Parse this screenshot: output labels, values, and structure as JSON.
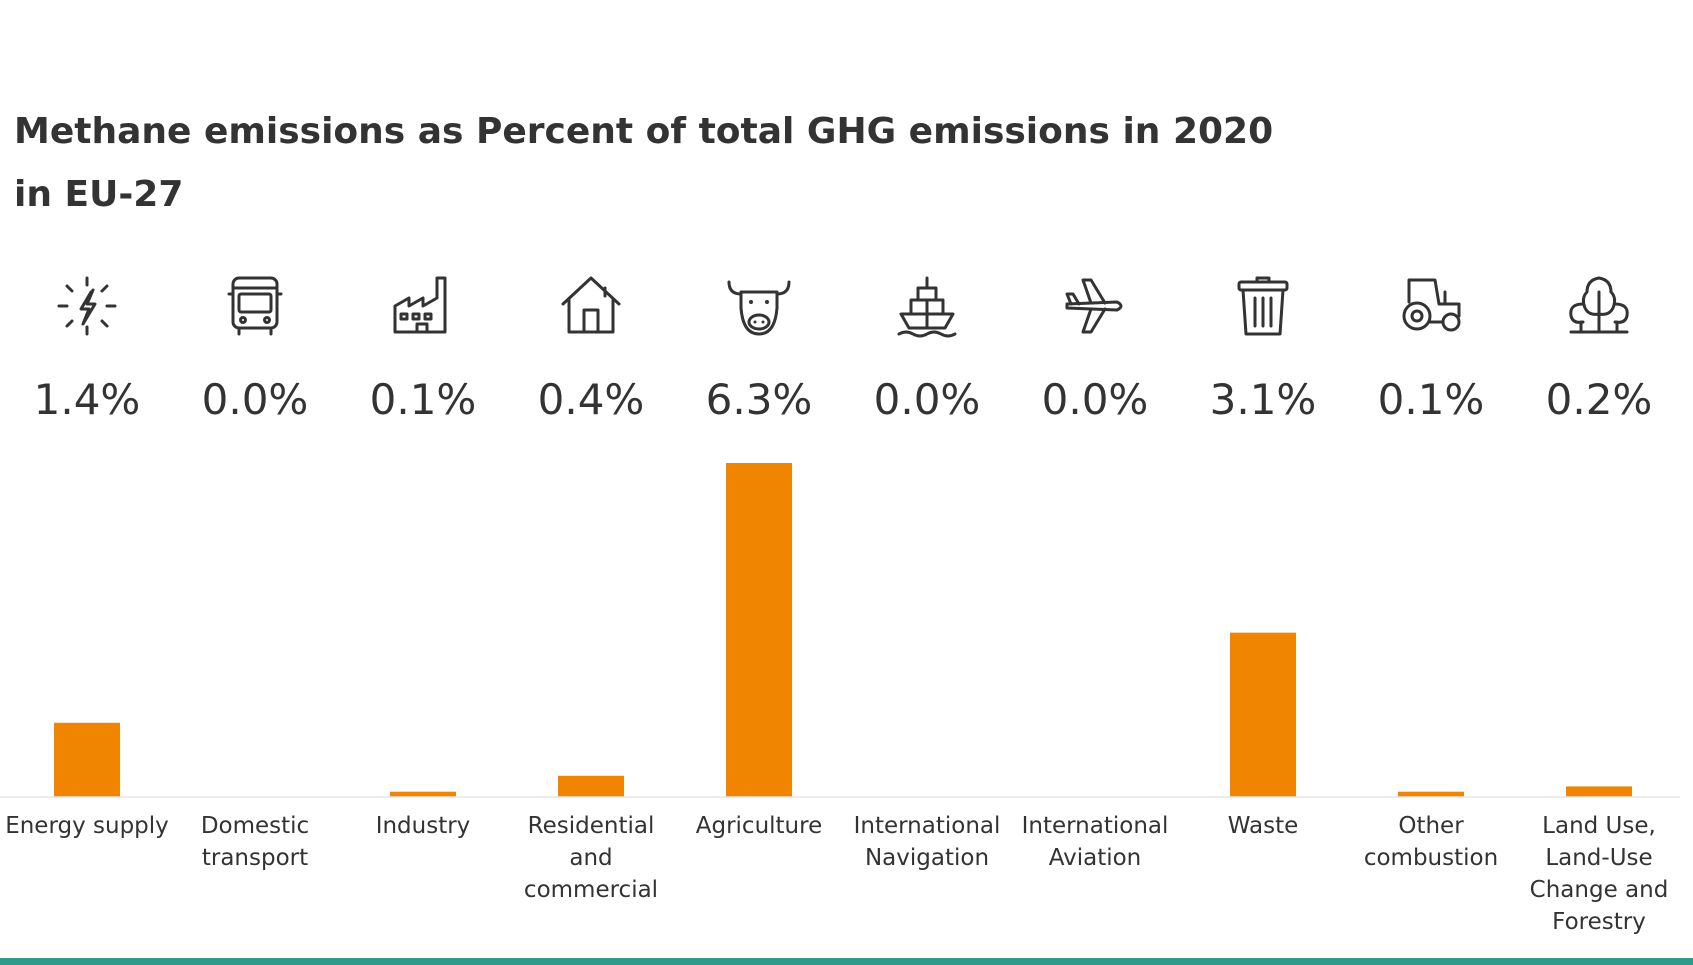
{
  "title_line1": "Methane emissions as Percent of total GHG emissions in 2020",
  "title_line2": "in EU-27",
  "chart_data": {
    "type": "bar",
    "title": "Methane emissions as Percent of total GHG emissions in 2020 in EU-27",
    "categories": [
      [
        "Energy supply"
      ],
      [
        "Domestic",
        "transport"
      ],
      [
        "Industry"
      ],
      [
        "Residential",
        "and",
        "commercial"
      ],
      [
        "Agriculture"
      ],
      [
        "International",
        "Navigation"
      ],
      [
        "International",
        "Aviation"
      ],
      [
        "Waste"
      ],
      [
        "Other",
        "combustion"
      ],
      [
        "Land Use,",
        "Land-Use",
        "Change and",
        "Forestry"
      ]
    ],
    "values": [
      1.4,
      0.0,
      0.1,
      0.4,
      6.3,
      0.0,
      0.0,
      3.1,
      0.1,
      0.2
    ],
    "value_labels": [
      "1.4%",
      "0.0%",
      "0.1%",
      "0.4%",
      "6.3%",
      "0.0%",
      "0.0%",
      "3.1%",
      "0.1%",
      "0.2%"
    ],
    "icons": [
      "energy-bolt-icon",
      "bus-icon",
      "factory-icon",
      "house-icon",
      "cow-icon",
      "ship-icon",
      "airplane-icon",
      "trash-can-icon",
      "tractor-icon",
      "trees-icon"
    ],
    "ylim": [
      0,
      6.3
    ],
    "xlabel": "",
    "ylabel": "",
    "grid": false,
    "bar_color": "#ef8500",
    "baseline_color": "#e6e6e6",
    "footer_line_color": "#2f9a8a"
  }
}
